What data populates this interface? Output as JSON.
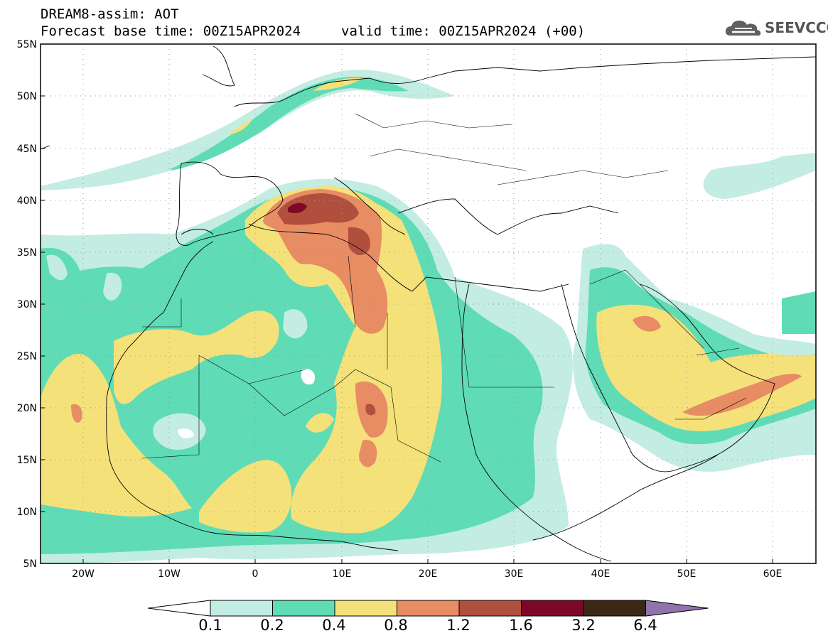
{
  "header": {
    "title": "DREAM8-assim: AOT",
    "base_time": "Forecast base time: 00Z15APR2024",
    "valid_time": "valid time: 00Z15APR2024 (+00)"
  },
  "logo": {
    "text": "SEEVCCC",
    "icon": "cloud-icon"
  },
  "map": {
    "projection": "lat-lon",
    "lon_range": [
      -25,
      65
    ],
    "lat_range": [
      5,
      55
    ],
    "lon_labels": [
      "20W",
      "10W",
      "0",
      "10E",
      "20E",
      "30E",
      "40E",
      "50E",
      "60E"
    ],
    "lat_labels": [
      "55N",
      "50N",
      "45N",
      "40N",
      "35N",
      "30N",
      "25N",
      "20N",
      "15N",
      "10N",
      "5N"
    ],
    "grid": "dotted"
  },
  "colorbar": {
    "thresholds": [
      "0.1",
      "0.2",
      "0.4",
      "0.8",
      "1.2",
      "1.6",
      "3.2",
      "6.4"
    ],
    "colors": [
      "#ffffff",
      "#c3ece3",
      "#5fdcb5",
      "#f5e17a",
      "#e88c63",
      "#b14f3f",
      "#7d0825",
      "#3b2816",
      "#8f73ad"
    ]
  }
}
